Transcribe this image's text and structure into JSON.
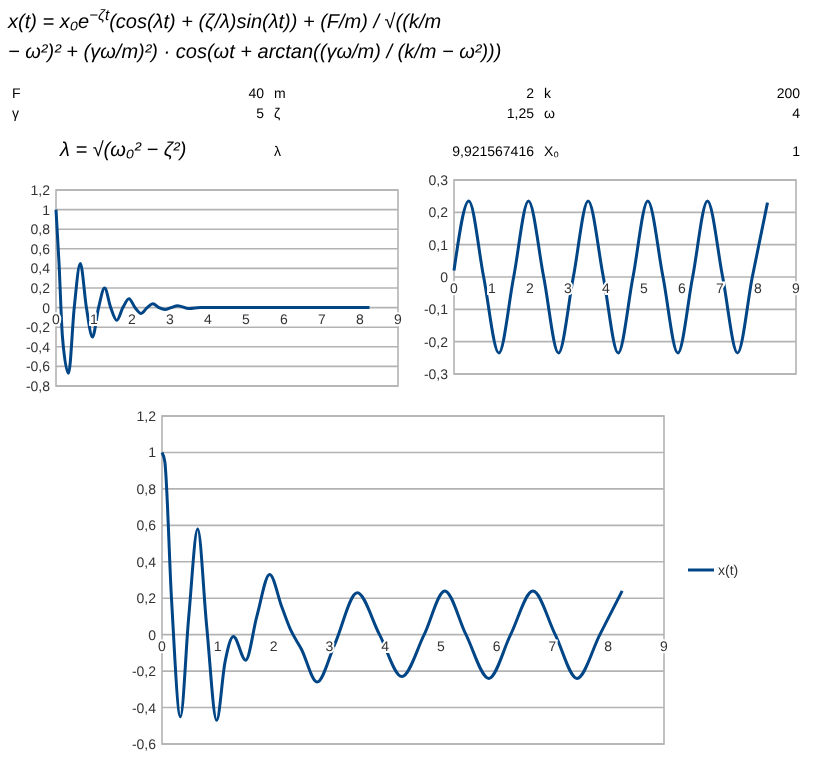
{
  "chart_data": [
    {
      "type": "other",
      "annotations": [
        "x(t) = x₀e$^{−ζt}$(cos(λt) + (ζ/λ)sin(λt)) + (F/m) / √((k/m − ω²)² + (γω/m)²) · cos(ωt + arctan((γω/m) / (k/m − ω²)))",
        "F",
        "40",
        "m",
        "2",
        "k",
        "200",
        "γ",
        "5",
        "ζ",
        "1,25",
        "ω",
        "4",
        "λ = √(ω₀² − ζ²)",
        "λ",
        "9,921567416",
        "X₀",
        "1"
      ]
    },
    {
      "type": "line",
      "color": "#004586",
      "x": [
        0,
        0.08,
        0.17,
        0.33,
        0.48,
        0.64,
        0.8,
        0.96,
        1.12,
        1.28,
        1.44,
        1.6,
        1.76,
        1.92,
        2.08,
        2.24,
        2.4,
        2.55,
        2.71,
        2.87,
        3.03,
        3.2,
        3.5,
        3.8,
        4.5,
        5.5,
        6.5,
        7.5,
        8.25
      ],
      "values": [
        1,
        0.45,
        -0.3,
        -0.67,
        0,
        0.45,
        0,
        -0.3,
        0,
        0.2,
        0,
        -0.13,
        0,
        0.09,
        0,
        -0.06,
        0,
        0.04,
        0,
        -0.02,
        0,
        0.02,
        -0.01,
        0,
        0,
        0,
        0,
        0,
        0
      ],
      "xlim": [
        0,
        9
      ],
      "xticks": [
        0,
        1,
        2,
        3,
        4,
        5,
        6,
        7,
        8,
        9
      ],
      "ylim": [
        -0.8,
        1.2
      ],
      "yticks": [
        {
          "value": -0.8,
          "label": "-0,8"
        },
        {
          "value": -0.6,
          "label": "-0,6"
        },
        {
          "value": -0.4,
          "label": "-0,4"
        },
        {
          "value": -0.2,
          "label": "-0,2"
        },
        {
          "value": 0,
          "label": "0"
        },
        {
          "value": 0.2,
          "label": "0,2"
        },
        {
          "value": 0.4,
          "label": "0,4"
        },
        {
          "value": 0.6,
          "label": "0,6"
        },
        {
          "value": 0.8,
          "label": "0,8"
        },
        {
          "value": 1,
          "label": "1"
        },
        {
          "value": 1.2,
          "label": "1,2"
        }
      ],
      "grid": "y",
      "marker": "none",
      "legend": false
    },
    {
      "type": "line",
      "color": "#004586",
      "x": [
        0,
        0.39,
        0.78,
        1.18,
        1.57,
        1.96,
        2.36,
        2.75,
        3.14,
        3.53,
        3.93,
        4.32,
        4.71,
        5.1,
        5.5,
        5.89,
        6.28,
        6.67,
        7.07,
        7.46,
        7.85,
        8.25
      ],
      "values": [
        0.02,
        0.235,
        0,
        -0.235,
        0,
        0.235,
        0,
        -0.235,
        0,
        0.235,
        0,
        -0.235,
        0,
        0.235,
        0,
        -0.235,
        0,
        0.235,
        0,
        -0.235,
        0,
        0.23
      ],
      "xlim": [
        0,
        9
      ],
      "xticks": [
        0,
        1,
        2,
        3,
        4,
        5,
        6,
        7,
        8,
        9
      ],
      "ylim": [
        -0.3,
        0.3
      ],
      "yticks": [
        {
          "value": -0.3,
          "label": "-0,3"
        },
        {
          "value": -0.2,
          "label": "-0,2"
        },
        {
          "value": -0.1,
          "label": "-0,1"
        },
        {
          "value": 0,
          "label": "0"
        },
        {
          "value": 0.1,
          "label": "0,1"
        },
        {
          "value": 0.2,
          "label": "0,2"
        },
        {
          "value": 0.3,
          "label": "0,3"
        }
      ],
      "grid": "y",
      "marker": "none",
      "legend": false
    },
    {
      "type": "line",
      "series": [
        {
          "name": "x(t)",
          "color": "#004586",
          "x": [
            0,
            0.05,
            0.17,
            0.33,
            0.48,
            0.64,
            0.8,
            0.98,
            1.13,
            1.28,
            1.5,
            1.7,
            1.93,
            2.15,
            2.3,
            2.5,
            2.78,
            3.1,
            3.5,
            3.9,
            4.3,
            4.7,
            5.07,
            5.45,
            5.86,
            6.25,
            6.65,
            7.05,
            7.44,
            7.85,
            8.25
          ],
          "values": [
            1,
            0.95,
            0.2,
            -0.45,
            0.1,
            0.58,
            0.05,
            -0.47,
            -0.15,
            -0.01,
            -0.14,
            0.1,
            0.33,
            0.15,
            0.03,
            -0.08,
            -0.26,
            -0.05,
            0.23,
            0,
            -0.23,
            0,
            0.24,
            0,
            -0.24,
            0,
            0.24,
            0,
            -0.24,
            0,
            0.24
          ]
        }
      ],
      "xlim": [
        0,
        9
      ],
      "xticks": [
        0,
        1,
        2,
        3,
        4,
        5,
        6,
        7,
        8,
        9
      ],
      "ylim": [
        -0.6,
        1.2
      ],
      "yticks": [
        {
          "value": -0.6,
          "label": "-0,6"
        },
        {
          "value": -0.4,
          "label": "-0,4"
        },
        {
          "value": -0.2,
          "label": "-0,2"
        },
        {
          "value": 0,
          "label": "0"
        },
        {
          "value": 0.2,
          "label": "0,2"
        },
        {
          "value": 0.4,
          "label": "0,4"
        },
        {
          "value": 0.6,
          "label": "0,6"
        },
        {
          "value": 0.8,
          "label": "0,8"
        },
        {
          "value": 1,
          "label": "1"
        },
        {
          "value": 1.2,
          "label": "1,2"
        }
      ],
      "grid": "y",
      "marker": "none",
      "legend": "right"
    }
  ]
}
